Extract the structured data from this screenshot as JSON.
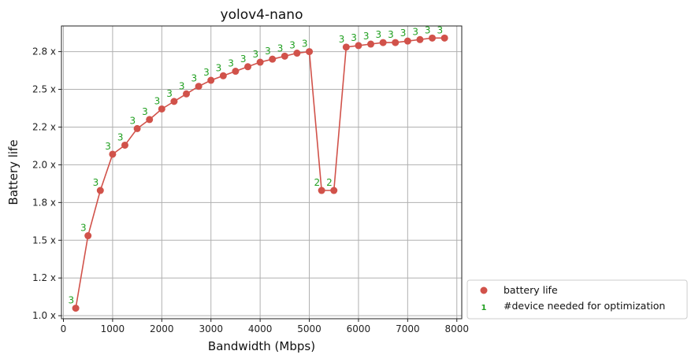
{
  "chart_data": {
    "type": "scatter",
    "title": "yolov4-nano",
    "xlabel": "Bandwidth (Mbps)",
    "ylabel": "Battery life",
    "xlim": [
      -40,
      8100
    ],
    "ylim": [
      0.98,
      2.92
    ],
    "xticks": [
      0,
      1000,
      2000,
      3000,
      4000,
      5000,
      6000,
      7000,
      8000
    ],
    "xtick_labels": [
      "0",
      "1000",
      "2000",
      "3000",
      "4000",
      "5000",
      "6000",
      "7000",
      "8000"
    ],
    "yticks": [
      1.0,
      1.25,
      1.5,
      1.75,
      2.0,
      2.25,
      2.5,
      2.75
    ],
    "ytick_labels": [
      "1.0 x",
      "1.2 x",
      "1.5 x",
      "1.8 x",
      "2.0 x",
      "2.2 x",
      "2.5 x",
      "2.8 x"
    ],
    "grid": true,
    "legend_position": "bottom-right outside",
    "series": [
      {
        "name": "battery life",
        "color": "#d1524a",
        "x": [
          250,
          500,
          750,
          1000,
          1250,
          1500,
          1750,
          2000,
          2250,
          2500,
          2750,
          3000,
          3250,
          3500,
          3750,
          4000,
          4250,
          4500,
          4750,
          5000,
          5250,
          5500,
          5750,
          6000,
          6250,
          6500,
          6750,
          7000,
          7250,
          7500,
          7750
        ],
        "y": [
          1.05,
          1.53,
          1.83,
          2.07,
          2.13,
          2.24,
          2.3,
          2.37,
          2.42,
          2.47,
          2.52,
          2.56,
          2.59,
          2.62,
          2.65,
          2.68,
          2.7,
          2.72,
          2.74,
          2.75,
          1.83,
          1.83,
          2.78,
          2.79,
          2.8,
          2.81,
          2.81,
          2.82,
          2.83,
          2.84,
          2.84
        ]
      },
      {
        "name": "#device needed for optimization",
        "color": "#22a022",
        "labels": [
          "3",
          "3",
          "3",
          "3",
          "3",
          "3",
          "3",
          "3",
          "3",
          "3",
          "3",
          "3",
          "3",
          "3",
          "3",
          "3",
          "3",
          "3",
          "3",
          "3",
          "2",
          "2",
          "3",
          "3",
          "3",
          "3",
          "3",
          "3",
          "3",
          "3",
          "3"
        ]
      }
    ],
    "legend_marker_text": "1"
  }
}
